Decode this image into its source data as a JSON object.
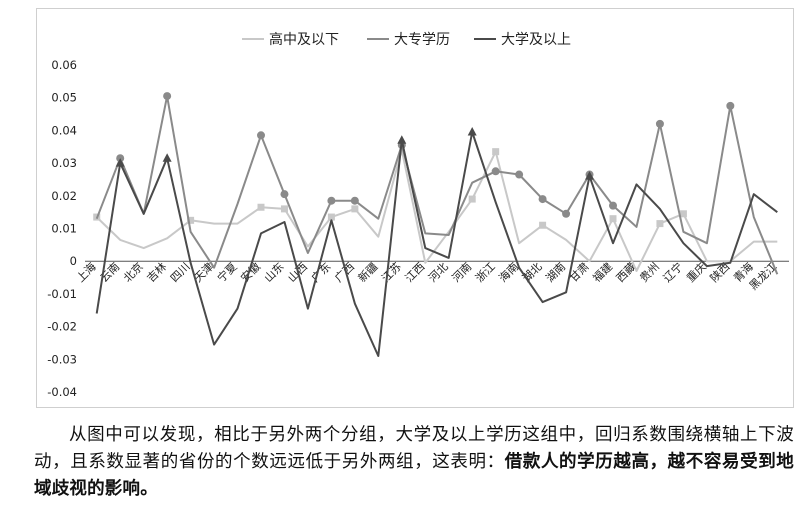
{
  "chart_data": {
    "type": "line",
    "legend_position": "top-center",
    "grid": false,
    "ylim": [
      -0.04,
      0.06
    ],
    "yticks": [
      "0.06",
      "0.05",
      "0.04",
      "0.03",
      "0.02",
      "0.01",
      "0",
      "-0.01",
      "-0.02",
      "-0.03",
      "-0.04"
    ],
    "categories": [
      "上海",
      "云南",
      "北京",
      "吉林",
      "四川",
      "天津",
      "宁夏",
      "安徽",
      "山东",
      "山西",
      "广东",
      "广西",
      "新疆",
      "江苏",
      "江西",
      "河北",
      "河南",
      "浙江",
      "海南",
      "湖北",
      "湖南",
      "甘肃",
      "福建",
      "西藏",
      "贵州",
      "辽宁",
      "重庆",
      "陕西",
      "青海",
      "黑龙江"
    ],
    "series": [
      {
        "name": "高中及以下",
        "color": "#c8c8c8",
        "marker": "square",
        "values": [
          0.0135,
          0.0065,
          0.004,
          0.007,
          0.0125,
          0.0115,
          0.0115,
          0.0165,
          0.016,
          0.0045,
          0.0135,
          0.016,
          0.0075,
          0.034,
          -0.0005,
          0.009,
          0.019,
          0.0335,
          0.0055,
          0.011,
          0.0065,
          0.0,
          0.013,
          -0.003,
          0.0115,
          0.0145,
          0.0,
          0.0,
          0.006,
          0.006
        ],
        "markers": [
          0,
          4,
          7,
          8,
          10,
          11,
          16,
          17,
          19,
          22,
          24,
          25
        ]
      },
      {
        "name": "大专学历",
        "color": "#8a8a8a",
        "marker": "circle",
        "values": [
          0.013,
          0.0315,
          0.0145,
          0.0505,
          0.009,
          -0.002,
          0.0175,
          0.0385,
          0.0205,
          0.0025,
          0.0185,
          0.0185,
          0.013,
          0.0355,
          0.0085,
          0.008,
          0.024,
          0.0275,
          0.0265,
          0.019,
          0.0145,
          0.0265,
          0.017,
          0.0105,
          0.042,
          0.009,
          0.0055,
          0.0475,
          0.0135,
          -0.004
        ],
        "markers": [
          1,
          3,
          7,
          8,
          10,
          11,
          13,
          17,
          18,
          19,
          20,
          21,
          22,
          24,
          27
        ]
      },
      {
        "name": "大学及以上",
        "color": "#4a4a4a",
        "marker": "triangle",
        "values": [
          -0.016,
          0.03,
          0.0145,
          0.0315,
          -0.0005,
          -0.0255,
          -0.0145,
          0.0085,
          0.012,
          -0.0145,
          0.0125,
          -0.013,
          -0.029,
          0.037,
          0.004,
          0.001,
          0.0395,
          0.018,
          -0.002,
          -0.0125,
          -0.0095,
          0.026,
          0.0055,
          0.0235,
          0.016,
          0.0055,
          -0.0015,
          -0.0005,
          0.0205,
          0.015
        ],
        "markers": [
          1,
          3,
          13,
          16,
          21
        ]
      }
    ]
  },
  "caption": {
    "text": "从图中可以发现，相比于另外两个分组，大学及以上学历这组中，回归系数围绕横轴上下波动，且系数显著的省份的个数远远低于另外两组，这表明：",
    "emphasis": "借款人的学历越高，越不容易受到地域歧视的影响。"
  }
}
